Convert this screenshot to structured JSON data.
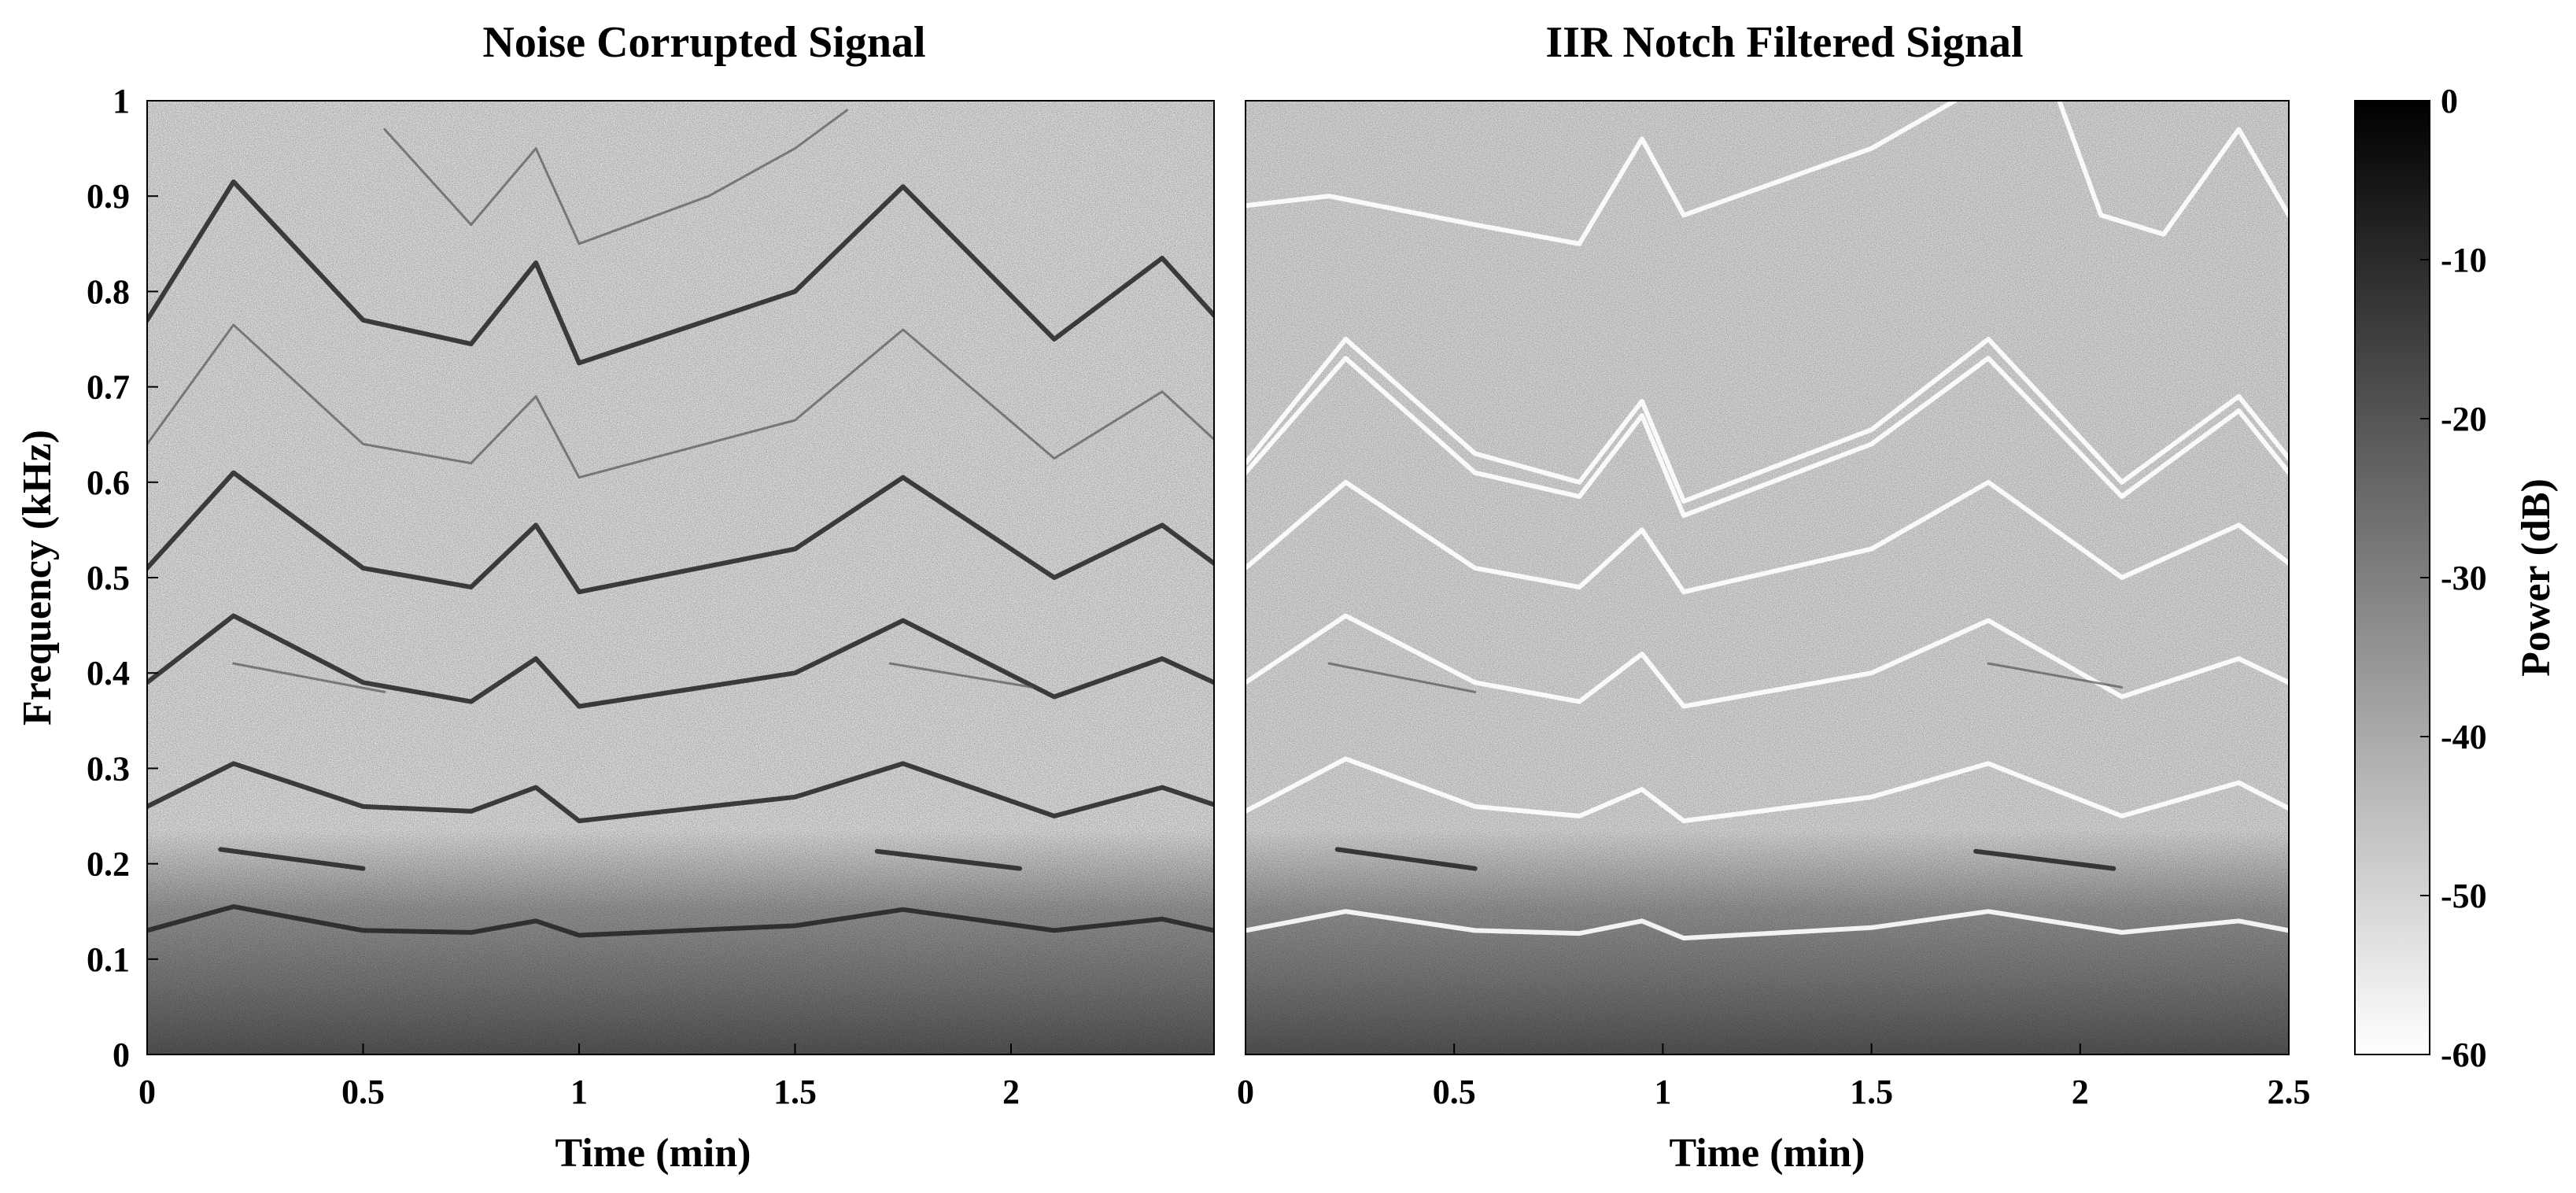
{
  "chart_data": [
    {
      "type": "heatmap",
      "title": "Noise Corrupted Signal",
      "xlabel": "Time (min)",
      "ylabel": "Frequency (kHz)",
      "xlim": [
        0,
        2.47
      ],
      "ylim": [
        0,
        1
      ],
      "xticks": [
        "0",
        "0.5",
        "1",
        "1.5",
        "2"
      ],
      "xtick_values": [
        0,
        0.5,
        1,
        1.5,
        2
      ],
      "yticks": [
        "0",
        "0.1",
        "0.2",
        "0.3",
        "0.4",
        "0.5",
        "0.6",
        "0.7",
        "0.8",
        "0.9",
        "1"
      ],
      "ytick_values": [
        0,
        0.1,
        0.2,
        0.3,
        0.4,
        0.5,
        0.6,
        0.7,
        0.8,
        0.9,
        1
      ],
      "colormap": "gray (dark = high power)",
      "tracks": [
        {
          "strength": "dark",
          "points": [
            [
              0,
              0.13
            ],
            [
              0.2,
              0.155
            ],
            [
              0.5,
              0.13
            ],
            [
              0.75,
              0.128
            ],
            [
              0.9,
              0.14
            ],
            [
              1.0,
              0.125
            ],
            [
              1.5,
              0.135
            ],
            [
              1.75,
              0.152
            ],
            [
              2.1,
              0.13
            ],
            [
              2.35,
              0.142
            ],
            [
              2.47,
              0.13
            ]
          ]
        },
        {
          "strength": "dark",
          "points": [
            [
              0,
              0.26
            ],
            [
              0.2,
              0.305
            ],
            [
              0.5,
              0.26
            ],
            [
              0.75,
              0.255
            ],
            [
              0.9,
              0.28
            ],
            [
              1.0,
              0.245
            ],
            [
              1.5,
              0.27
            ],
            [
              1.75,
              0.305
            ],
            [
              2.1,
              0.25
            ],
            [
              2.35,
              0.28
            ],
            [
              2.47,
              0.262
            ]
          ]
        },
        {
          "strength": "dark",
          "points": [
            [
              0,
              0.39
            ],
            [
              0.2,
              0.46
            ],
            [
              0.5,
              0.39
            ],
            [
              0.75,
              0.37
            ],
            [
              0.9,
              0.415
            ],
            [
              1.0,
              0.365
            ],
            [
              1.5,
              0.4
            ],
            [
              1.75,
              0.455
            ],
            [
              2.1,
              0.375
            ],
            [
              2.35,
              0.415
            ],
            [
              2.47,
              0.39
            ]
          ]
        },
        {
          "strength": "dark",
          "points": [
            [
              0,
              0.51
            ],
            [
              0.2,
              0.61
            ],
            [
              0.5,
              0.51
            ],
            [
              0.75,
              0.49
            ],
            [
              0.9,
              0.555
            ],
            [
              1.0,
              0.485
            ],
            [
              1.5,
              0.53
            ],
            [
              1.75,
              0.605
            ],
            [
              2.1,
              0.5
            ],
            [
              2.35,
              0.555
            ],
            [
              2.47,
              0.515
            ]
          ]
        },
        {
          "strength": "faint",
          "points": [
            [
              0,
              0.64
            ],
            [
              0.2,
              0.765
            ],
            [
              0.5,
              0.64
            ],
            [
              0.75,
              0.62
            ],
            [
              0.9,
              0.69
            ],
            [
              1.0,
              0.605
            ],
            [
              1.5,
              0.665
            ],
            [
              1.75,
              0.76
            ],
            [
              2.1,
              0.625
            ],
            [
              2.35,
              0.695
            ],
            [
              2.47,
              0.645
            ]
          ]
        },
        {
          "strength": "dark",
          "points": [
            [
              0,
              0.77
            ],
            [
              0.2,
              0.915
            ],
            [
              0.5,
              0.77
            ],
            [
              0.75,
              0.745
            ],
            [
              0.9,
              0.83
            ],
            [
              1.0,
              0.725
            ],
            [
              1.5,
              0.8
            ],
            [
              1.75,
              0.91
            ],
            [
              2.1,
              0.75
            ],
            [
              2.35,
              0.835
            ],
            [
              2.47,
              0.775
            ]
          ]
        },
        {
          "strength": "faint",
          "points": [
            [
              0.55,
              0.97
            ],
            [
              0.75,
              0.87
            ],
            [
              0.9,
              0.95
            ],
            [
              1.0,
              0.85
            ],
            [
              1.3,
              0.9
            ],
            [
              1.5,
              0.95
            ],
            [
              1.62,
              0.99
            ]
          ]
        },
        {
          "strength": "dark",
          "points": [
            [
              0.17,
              0.215
            ],
            [
              0.5,
              0.195
            ]
          ]
        },
        {
          "strength": "dark",
          "points": [
            [
              1.69,
              0.213
            ],
            [
              2.02,
              0.195
            ]
          ]
        },
        {
          "strength": "faint",
          "points": [
            [
              0.2,
              0.41
            ],
            [
              0.55,
              0.38
            ]
          ]
        },
        {
          "strength": "faint",
          "points": [
            [
              1.72,
              0.41
            ],
            [
              2.05,
              0.385
            ]
          ]
        }
      ]
    },
    {
      "type": "heatmap",
      "title": "IIR Notch Filtered Signal",
      "xlabel": "Time (min)",
      "ylabel": "",
      "xlim": [
        0,
        2.5
      ],
      "ylim": [
        0,
        1
      ],
      "xticks": [
        "0",
        "0.5",
        "1",
        "1.5",
        "2",
        "2.5"
      ],
      "xtick_values": [
        0,
        0.5,
        1,
        1.5,
        2,
        2.5
      ],
      "colormap": "gray (dark = high power)",
      "tracks": [
        {
          "strength": "light",
          "points": [
            [
              0,
              0.13
            ],
            [
              0.24,
              0.15
            ],
            [
              0.55,
              0.13
            ],
            [
              0.8,
              0.127
            ],
            [
              0.95,
              0.14
            ],
            [
              1.05,
              0.122
            ],
            [
              1.5,
              0.133
            ],
            [
              1.78,
              0.15
            ],
            [
              2.1,
              0.128
            ],
            [
              2.38,
              0.14
            ],
            [
              2.5,
              0.13
            ]
          ]
        },
        {
          "strength": "light",
          "points": [
            [
              0,
              0.255
            ],
            [
              0.24,
              0.31
            ],
            [
              0.55,
              0.26
            ],
            [
              0.8,
              0.25
            ],
            [
              0.95,
              0.278
            ],
            [
              1.05,
              0.245
            ],
            [
              1.5,
              0.27
            ],
            [
              1.78,
              0.305
            ],
            [
              2.1,
              0.25
            ],
            [
              2.38,
              0.285
            ],
            [
              2.5,
              0.258
            ]
          ]
        },
        {
          "strength": "light",
          "points": [
            [
              0,
              0.39
            ],
            [
              0.24,
              0.46
            ],
            [
              0.55,
              0.39
            ],
            [
              0.8,
              0.37
            ],
            [
              0.95,
              0.42
            ],
            [
              1.05,
              0.365
            ],
            [
              1.5,
              0.4
            ],
            [
              1.78,
              0.455
            ],
            [
              2.1,
              0.375
            ],
            [
              2.38,
              0.415
            ],
            [
              2.5,
              0.39
            ]
          ]
        },
        {
          "strength": "light",
          "points": [
            [
              0,
              0.51
            ],
            [
              0.24,
              0.6
            ],
            [
              0.55,
              0.51
            ],
            [
              0.8,
              0.49
            ],
            [
              0.95,
              0.55
            ],
            [
              1.05,
              0.485
            ],
            [
              1.5,
              0.53
            ],
            [
              1.78,
              0.6
            ],
            [
              2.1,
              0.5
            ],
            [
              2.38,
              0.555
            ],
            [
              2.5,
              0.515
            ]
          ]
        },
        {
          "strength": "light",
          "points": [
            [
              0,
              0.62
            ],
            [
              0.24,
              0.75
            ],
            [
              0.55,
              0.63
            ],
            [
              0.8,
              0.6
            ],
            [
              0.95,
              0.685
            ],
            [
              1.05,
              0.58
            ],
            [
              1.5,
              0.655
            ],
            [
              1.78,
              0.75
            ],
            [
              2.1,
              0.6
            ],
            [
              2.38,
              0.69
            ],
            [
              2.5,
              0.625
            ]
          ]
        },
        {
          "strength": "light",
          "points": [
            [
              0,
              0.61
            ],
            [
              0.24,
              0.73
            ],
            [
              0.55,
              0.61
            ],
            [
              0.8,
              0.585
            ],
            [
              0.95,
              0.67
            ],
            [
              1.05,
              0.565
            ],
            [
              1.5,
              0.64
            ],
            [
              1.78,
              0.73
            ],
            [
              2.1,
              0.585
            ],
            [
              2.38,
              0.675
            ],
            [
              2.5,
              0.61
            ]
          ]
        },
        {
          "strength": "light",
          "points": [
            [
              0,
              0.89
            ],
            [
              0.2,
              0.9
            ],
            [
              0.55,
              0.87
            ],
            [
              0.8,
              0.85
            ],
            [
              0.95,
              0.96
            ],
            [
              1.05,
              0.88
            ],
            [
              1.5,
              0.95
            ],
            [
              1.7,
              1.0
            ]
          ]
        },
        {
          "strength": "light",
          "points": [
            [
              1.95,
              1.0
            ],
            [
              2.05,
              0.88
            ],
            [
              2.2,
              0.86
            ],
            [
              2.38,
              0.97
            ],
            [
              2.5,
              0.88
            ]
          ]
        },
        {
          "strength": "dark",
          "points": [
            [
              0.22,
              0.215
            ],
            [
              0.55,
              0.195
            ]
          ]
        },
        {
          "strength": "dark",
          "points": [
            [
              1.75,
              0.213
            ],
            [
              2.08,
              0.195
            ]
          ]
        },
        {
          "strength": "faint",
          "points": [
            [
              0.2,
              0.41
            ],
            [
              0.55,
              0.38
            ]
          ]
        },
        {
          "strength": "faint",
          "points": [
            [
              1.78,
              0.41
            ],
            [
              2.1,
              0.385
            ]
          ]
        }
      ]
    }
  ],
  "colorbar": {
    "label": "Power (dB)",
    "ticks": [
      "0",
      "-10",
      "-20",
      "-30",
      "-40",
      "-50",
      "-60"
    ],
    "tick_values": [
      0,
      -10,
      -20,
      -30,
      -40,
      -50,
      -60
    ],
    "range": [
      -60,
      0
    ],
    "colors": {
      "high": "#000000",
      "low": "#ffffff"
    }
  },
  "colors": {
    "background": "#e2e2e2",
    "noise_floor": "#5a5a5a",
    "dark_track": "#222222",
    "light_track": "#ffffff"
  }
}
